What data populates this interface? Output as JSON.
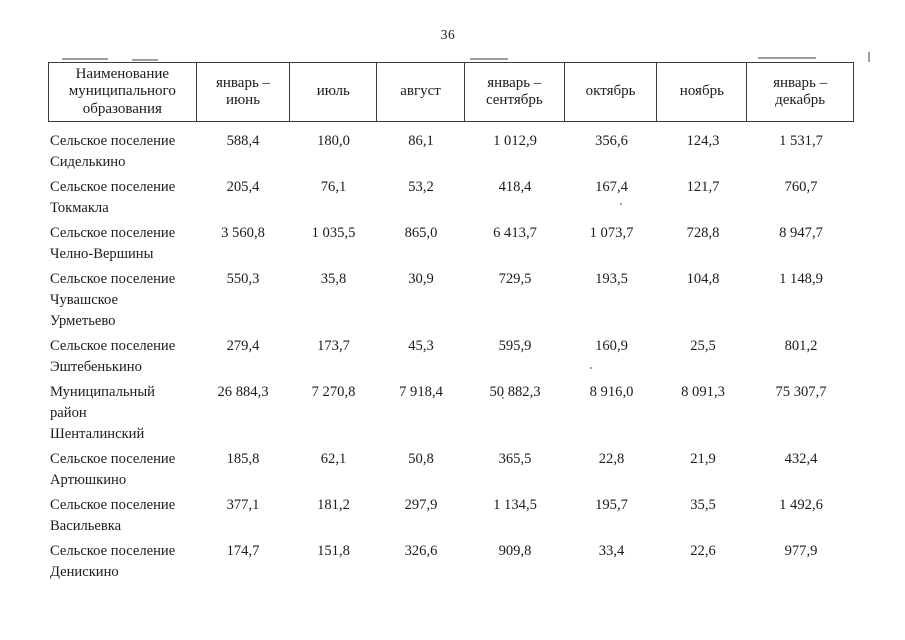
{
  "page": {
    "number": "36"
  },
  "table": {
    "columns": [
      {
        "key": "name",
        "label": "Наименование\nмуниципального\nобразования"
      },
      {
        "key": "jan_jun",
        "label": "январь –\nиюнь"
      },
      {
        "key": "jul",
        "label": "июль"
      },
      {
        "key": "aug",
        "label": "август"
      },
      {
        "key": "jan_sep",
        "label": "январь –\nсентябрь"
      },
      {
        "key": "oct",
        "label": "октябрь"
      },
      {
        "key": "nov",
        "label": "ноябрь"
      },
      {
        "key": "jan_dec",
        "label": "январь –\nдекабрь"
      }
    ],
    "rows": [
      {
        "name": "Сельское поселение\nСиделькино",
        "values": [
          "588,4",
          "180,0",
          "86,1",
          "1 012,9",
          "356,6",
          "124,3",
          "1 531,7"
        ]
      },
      {
        "name": "Сельское поселение\nТокмакла",
        "values": [
          "205,4",
          "76,1",
          "53,2",
          "418,4",
          "167,4",
          "121,7",
          "760,7"
        ]
      },
      {
        "name": "Сельское поселение\nЧелно-Вершины",
        "values": [
          "3 560,8",
          "1 035,5",
          "865,0",
          "6 413,7",
          "1 073,7",
          "728,8",
          "8 947,7"
        ]
      },
      {
        "name": "Сельское поселение\nЧувашское\nУрметьево",
        "values": [
          "550,3",
          "35,8",
          "30,9",
          "729,5",
          "193,5",
          "104,8",
          "1 148,9"
        ]
      },
      {
        "name": "Сельское поселение\nЭштебенькино",
        "values": [
          "279,4",
          "173,7",
          "45,3",
          "595,9",
          "160,9",
          "25,5",
          "801,2"
        ]
      },
      {
        "name": "Муниципальный\nрайон\nШенталинский",
        "values": [
          "26 884,3",
          "7 270,8",
          "7 918,4",
          "50 882,3",
          "8 916,0",
          "8 091,3",
          "75 307,7"
        ]
      },
      {
        "name": "Сельское поселение\nАртюшкино",
        "values": [
          "185,8",
          "62,1",
          "50,8",
          "365,5",
          "22,8",
          "21,9",
          "432,4"
        ]
      },
      {
        "name": "Сельское поселение\nВасильевка",
        "values": [
          "377,1",
          "181,2",
          "297,9",
          "1 134,5",
          "195,7",
          "35,5",
          "1 492,6"
        ]
      },
      {
        "name": "Сельское поселение\nДенискино",
        "values": [
          "174,7",
          "151,8",
          "326,6",
          "909,8",
          "33,4",
          "22,6",
          "977,9"
        ]
      }
    ]
  }
}
